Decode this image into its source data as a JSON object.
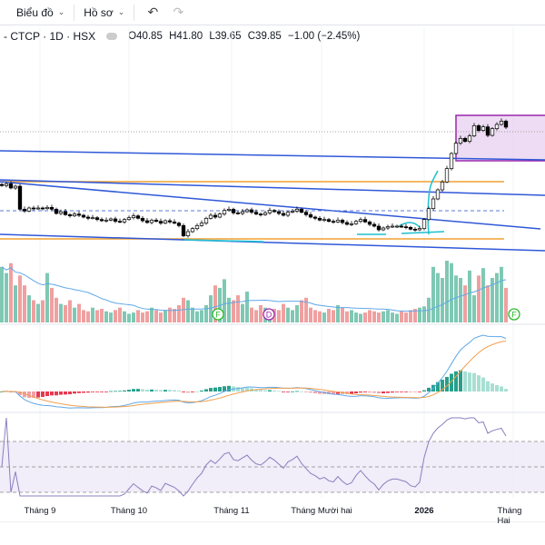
{
  "toolbar": {
    "chart_label": "Biểu đồ",
    "profile_label": "Hồ sơ"
  },
  "legend": {
    "symbol": "- CTCP · 1D · HSX",
    "open": "O40.85",
    "high": "H41.80",
    "low": "L39.65",
    "close": "C39.85",
    "change": "−1.00 (−2.45%)"
  },
  "colors": {
    "up_volume": "#7fc8b4",
    "down_volume": "#f0a0a0",
    "macd": "#5fa8e8",
    "signal": "#f0a050",
    "rsi": "#8a7fbf",
    "box": "#9c27b0"
  },
  "markers": [
    {
      "label": "F",
      "color": "#2eb82e"
    },
    {
      "label": "D",
      "color": "#9c27b0"
    },
    {
      "label": "F",
      "color": "#2eb82e"
    }
  ],
  "time_axis": [
    "Tháng 9",
    "Tháng 10",
    "Tháng 11",
    "Tháng Mười hai",
    "2026",
    "Tháng Hai"
  ],
  "chart_data": {
    "type": "candlestick",
    "closes": [
      30.2,
      30.5,
      29.8,
      30.1,
      26.3,
      26.0,
      26.5,
      26.4,
      26.5,
      26.4,
      26.6,
      26.3,
      25.6,
      25.9,
      25.4,
      25.2,
      25.5,
      25.3,
      25.0,
      24.8,
      24.9,
      24.6,
      24.4,
      24.5,
      24.7,
      24.3,
      24.2,
      24.6,
      24.9,
      25.2,
      24.8,
      24.4,
      24.1,
      24.5,
      24.3,
      24.0,
      24.4,
      24.2,
      24.0,
      23.6,
      21.9,
      22.6,
      23.1,
      23.6,
      24.0,
      24.8,
      25.3,
      25.0,
      25.5,
      26.1,
      26.3,
      25.7,
      25.6,
      25.9,
      26.2,
      25.8,
      25.5,
      25.4,
      25.7,
      26.1,
      25.9,
      25.6,
      25.3,
      25.8,
      26.0,
      26.3,
      25.8,
      25.4,
      25.0,
      24.8,
      24.5,
      24.6,
      24.3,
      24.2,
      24.5,
      24.1,
      23.8,
      23.9,
      24.3,
      24.6,
      24.2,
      23.8,
      23.5,
      22.9,
      23.2,
      23.4,
      23.5,
      23.5,
      23.4,
      23.3,
      23.0,
      22.9,
      23.1,
      24.6,
      26.4,
      28.0,
      29.5,
      30.8,
      33.0,
      35.5,
      37.2,
      38.0,
      37.5,
      38.4,
      40.1,
      39.3,
      39.9,
      38.5,
      39.6,
      40.3,
      40.85,
      39.85
    ],
    "volumes": [
      45,
      40,
      48,
      30,
      38,
      30,
      22,
      18,
      15,
      18,
      40,
      28,
      20,
      15,
      14,
      18,
      12,
      15,
      10,
      9,
      12,
      10,
      11,
      9,
      8,
      10,
      12,
      9,
      7,
      8,
      10,
      8,
      9,
      12,
      10,
      8,
      10,
      12,
      11,
      14,
      20,
      18,
      12,
      9,
      10,
      14,
      22,
      30,
      28,
      35,
      20,
      18,
      22,
      15,
      25,
      12,
      10,
      14,
      12,
      9,
      11,
      10,
      15,
      12,
      10,
      14,
      18,
      20,
      12,
      10,
      9,
      8,
      11,
      10,
      14,
      12,
      9,
      10,
      8,
      7,
      8,
      10,
      9,
      8,
      9,
      10,
      8,
      7,
      9,
      8,
      10,
      11,
      12,
      13,
      20,
      45,
      40,
      36,
      50,
      48,
      38,
      36,
      30,
      42,
      22,
      38,
      44,
      30,
      36,
      40,
      45,
      28
    ]
  }
}
